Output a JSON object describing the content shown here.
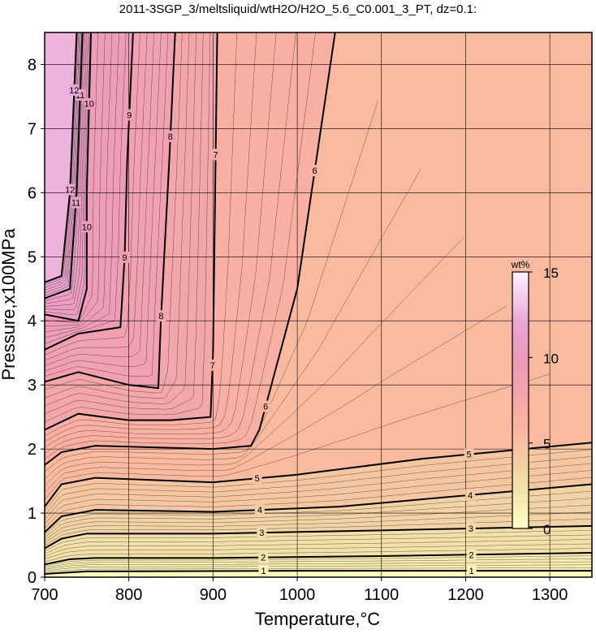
{
  "chart_data": {
    "type": "contour",
    "title": "2011-3SGP_3/meltsliquid/wtH2O/H2O_5.6_C0.001_3_PT, dz=0.1:",
    "x_label": "Temperature,°C",
    "y_label": "Pressure,x100MPa",
    "xlim": [
      700,
      1350
    ],
    "ylim": [
      0,
      8.5
    ],
    "xticks": [
      700,
      800,
      900,
      1000,
      1100,
      1200,
      1300
    ],
    "yticks": [
      0,
      1,
      2,
      3,
      4,
      5,
      6,
      7,
      8
    ],
    "grid": true,
    "colorbar": {
      "label": "wt%",
      "clim": [
        0,
        15
      ],
      "ticks": [
        0,
        5,
        10,
        15
      ]
    },
    "colormap": {
      "stops": [
        0,
        2,
        4,
        6,
        8,
        10,
        12,
        15
      ],
      "colors": [
        "#ffffc4",
        "#f4e6ac",
        "#f3cda4",
        "#fbb59f",
        "#f2a2ac",
        "#eb9bbc",
        "#e9a6d4",
        "#fff2ff"
      ]
    },
    "contours": [
      {
        "level": 1,
        "x": [
          700,
          750,
          1000,
          1350
        ],
        "y": [
          0.05,
          0.09,
          0.1,
          0.1
        ]
      },
      {
        "level": 2,
        "x": [
          700,
          730,
          760,
          900,
          1100,
          1350
        ],
        "y": [
          0.2,
          0.28,
          0.3,
          0.3,
          0.33,
          0.38
        ]
      },
      {
        "level": 3,
        "x": [
          700,
          720,
          750,
          900,
          1100,
          1350
        ],
        "y": [
          0.45,
          0.6,
          0.68,
          0.68,
          0.73,
          0.8
        ]
      },
      {
        "level": 4,
        "x": [
          700,
          720,
          760,
          900,
          1050,
          1350
        ],
        "y": [
          0.7,
          0.95,
          1.05,
          1.02,
          1.1,
          1.45
        ]
      },
      {
        "level": 5,
        "x": [
          700,
          720,
          760,
          900,
          1000,
          1150,
          1350
        ],
        "y": [
          1.1,
          1.45,
          1.55,
          1.48,
          1.6,
          1.85,
          2.1
        ]
      },
      {
        "level": 6,
        "x": [
          700,
          720,
          760,
          900,
          945,
          955,
          1000,
          1045
        ],
        "y": [
          1.75,
          1.95,
          2.05,
          2.0,
          2.05,
          2.3,
          4.5,
          8.5
        ]
      },
      {
        "level": 7,
        "x": [
          700,
          740,
          800,
          850,
          897,
          900,
          905
        ],
        "y": [
          2.3,
          2.55,
          2.45,
          2.45,
          2.5,
          3.5,
          8.5
        ]
      },
      {
        "level": 8,
        "x": [
          700,
          740,
          800,
          835,
          838,
          848,
          855
        ],
        "y": [
          3.05,
          3.2,
          3.0,
          2.95,
          4.0,
          6.5,
          8.5
        ]
      },
      {
        "level": 9,
        "x": [
          700,
          740,
          790,
          795,
          798,
          805
        ],
        "y": [
          3.55,
          3.8,
          3.9,
          5.0,
          6.5,
          8.5
        ]
      },
      {
        "level": 10,
        "x": [
          700,
          740,
          750,
          750,
          755
        ],
        "y": [
          4.1,
          4.0,
          4.5,
          6.0,
          8.5
        ]
      },
      {
        "level": 11,
        "x": [
          700,
          730,
          738,
          745
        ],
        "y": [
          4.35,
          4.5,
          6.0,
          8.5
        ]
      },
      {
        "level": 12,
        "x": [
          700,
          720,
          730,
          738
        ],
        "y": [
          4.6,
          4.7,
          6.0,
          8.5
        ]
      }
    ]
  }
}
